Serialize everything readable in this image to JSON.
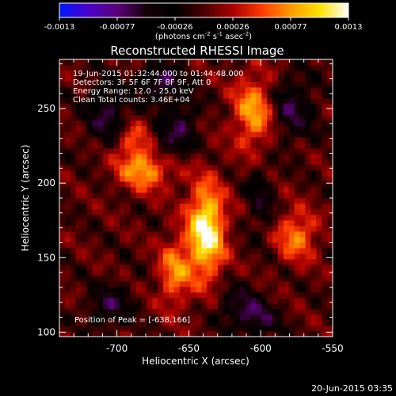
{
  "colorbar": {
    "tick_labels": [
      "-0.0013",
      "-0.00077",
      "-0.00026",
      "0.00026",
      "0.00077",
      "0.0013"
    ],
    "unit_prefix": "(photons cm",
    "unit_exp1": "-2",
    "unit_mid": " s",
    "unit_exp2": "-1",
    "unit_mid2": " asec",
    "unit_exp3": "-2",
    "unit_suffix": ")",
    "range": [
      -0.0013,
      0.0013
    ],
    "colors": [
      "#0018ff",
      "#4a00c8",
      "#5a007a",
      "#160008",
      "#000000",
      "#4a0000",
      "#a80000",
      "#ff3a00",
      "#ff9a00",
      "#ffe200",
      "#ffffff"
    ]
  },
  "chart_data": {
    "type": "heatmap",
    "title": "Reconstructed RHESSI Image",
    "xlabel": "Heliocentric X (arcsec)",
    "ylabel": "Heliocentric Y (arcsec)",
    "xlim": [
      -740,
      -550
    ],
    "ylim": [
      97,
      283
    ],
    "x_ticks": [
      -700,
      -650,
      -600,
      -550
    ],
    "y_ticks": [
      100,
      150,
      200,
      250
    ],
    "x_tick_labels": [
      "-700",
      "-650",
      "-600",
      "-550"
    ],
    "y_tick_labels": [
      "100",
      "150",
      "200",
      "250"
    ],
    "annotations": [
      "19-Jun-2015 01:32:44.000 to 01:44:48.000",
      "Detectors: 3F 5F 6F 7F 8F 9F, Att 0",
      "Energy Range: 12.0 - 25.0 keV",
      "Clean    Total counts: 3.46E+04"
    ],
    "peak_label": "Position of Peak = [-638,166]",
    "peak": [
      -638,
      166
    ],
    "peak_value": 0.0013,
    "grid": false,
    "features": [
      {
        "x": -638,
        "y": 168,
        "value": 0.0013,
        "spread_x": 9,
        "spread_y": 22
      },
      {
        "x": -680,
        "y": 210,
        "value": 0.00085,
        "spread_x": 14,
        "spread_y": 10
      },
      {
        "x": -605,
        "y": 248,
        "value": 0.0008,
        "spread_x": 10,
        "spread_y": 18
      },
      {
        "x": -660,
        "y": 140,
        "value": 0.0007,
        "spread_x": 8,
        "spread_y": 16
      },
      {
        "x": -575,
        "y": 165,
        "value": 0.0007,
        "spread_x": 10,
        "spread_y": 12
      },
      {
        "x": -690,
        "y": 230,
        "value": 0.0005,
        "spread_x": 8,
        "spread_y": 8
      },
      {
        "x": -707,
        "y": 247,
        "value": -0.0006,
        "spread_x": 10,
        "spread_y": 14
      },
      {
        "x": -670,
        "y": 268,
        "value": -0.0007,
        "spread_x": 10,
        "spread_y": 8
      },
      {
        "x": -655,
        "y": 238,
        "value": -0.0005,
        "spread_x": 8,
        "spread_y": 14
      },
      {
        "x": -667,
        "y": 225,
        "value": -0.00045,
        "spread_x": 6,
        "spread_y": 10
      },
      {
        "x": -578,
        "y": 250,
        "value": -0.0006,
        "spread_x": 10,
        "spread_y": 14
      },
      {
        "x": -600,
        "y": 190,
        "value": -0.00045,
        "spread_x": 6,
        "spread_y": 16
      },
      {
        "x": -705,
        "y": 118,
        "value": -0.00055,
        "spread_x": 10,
        "spread_y": 10
      },
      {
        "x": -615,
        "y": 118,
        "value": -0.0006,
        "spread_x": 10,
        "spread_y": 9
      },
      {
        "x": -600,
        "y": 108,
        "value": -0.00055,
        "spread_x": 9,
        "spread_y": 7
      }
    ]
  },
  "footer": {
    "date": "20-Jun-2015 03:35"
  }
}
